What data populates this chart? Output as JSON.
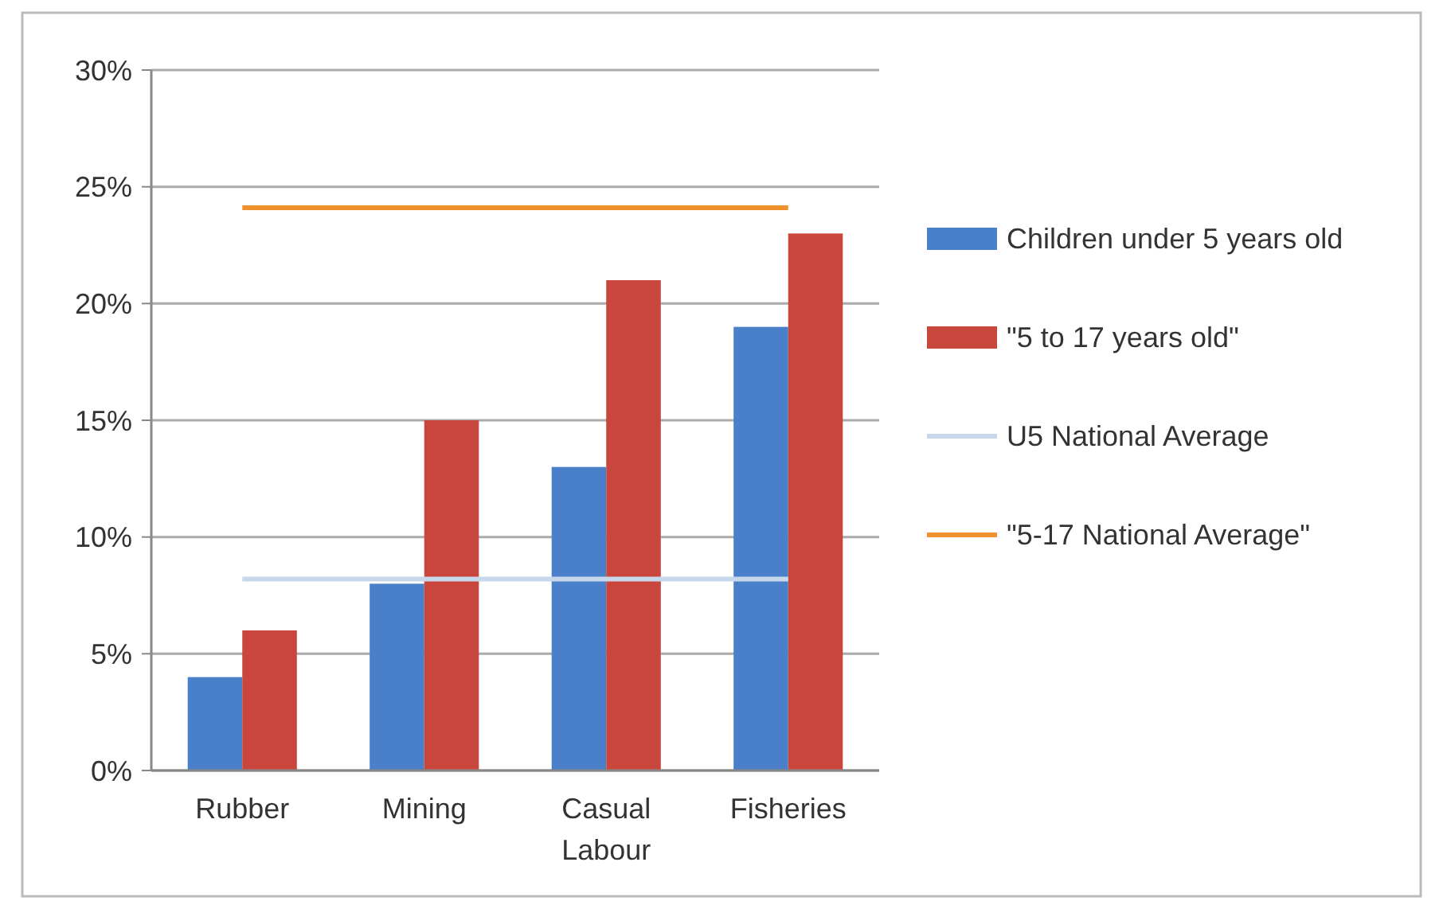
{
  "chart_data": {
    "type": "bar",
    "categories": [
      "Rubber",
      "Mining",
      "Casual Labour",
      "Fisheries"
    ],
    "series": [
      {
        "name": "Children under 5 years old",
        "color": "#4a7fc9",
        "values": [
          4,
          8,
          13,
          19
        ]
      },
      {
        "name": "\"5 to 17 years old\"",
        "color": "#c9463d",
        "values": [
          6,
          15,
          21,
          23
        ]
      },
      {
        "name": "U5 National Average",
        "type": "line",
        "color": "#c8d8ec",
        "values": [
          8.2,
          8.2,
          8.2,
          8.2
        ]
      },
      {
        "name": "\"5-17 National Average\"",
        "type": "line",
        "color": "#f0902a",
        "values": [
          24.1,
          24.1,
          24.1,
          24.1
        ]
      }
    ],
    "ylim": [
      0,
      30
    ],
    "yticks": [
      {
        "value": 0,
        "label": "0%"
      },
      {
        "value": 5,
        "label": "5%"
      },
      {
        "value": 10,
        "label": "10%"
      },
      {
        "value": 15,
        "label": "15%"
      },
      {
        "value": 20,
        "label": "20%"
      },
      {
        "value": 25,
        "label": "25%"
      },
      {
        "value": 30,
        "label": "30%"
      }
    ],
    "grid": "y",
    "legend": "right",
    "marker": "none"
  }
}
